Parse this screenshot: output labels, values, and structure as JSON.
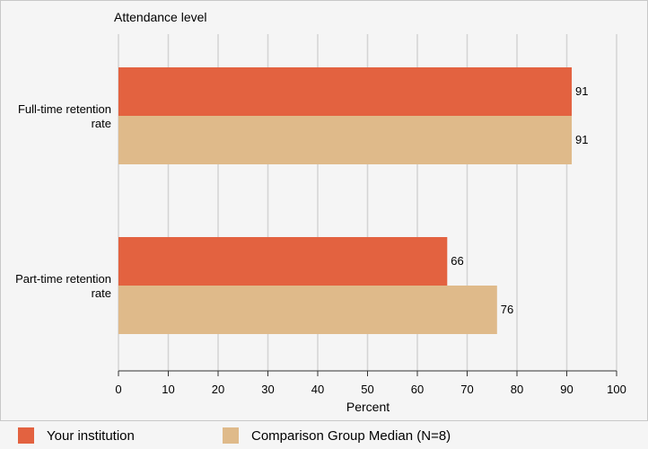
{
  "chart_data": {
    "type": "bar",
    "orientation": "horizontal",
    "categories": [
      "Full-time retention rate",
      "Part-time retention rate"
    ],
    "series": [
      {
        "name": "Your institution",
        "values": [
          91,
          66
        ],
        "color": "#e36240"
      },
      {
        "name": "Comparison Group Median (N=8)",
        "values": [
          91,
          76
        ],
        "color": "#dfba8a"
      }
    ],
    "title": "Attendance level",
    "xlabel": "Percent",
    "ylabel": "",
    "xlim": [
      0,
      100
    ],
    "xticks": [
      0,
      10,
      20,
      30,
      40,
      50,
      60,
      70,
      80,
      90,
      100
    ],
    "grid": true,
    "legend_position": "bottom"
  }
}
